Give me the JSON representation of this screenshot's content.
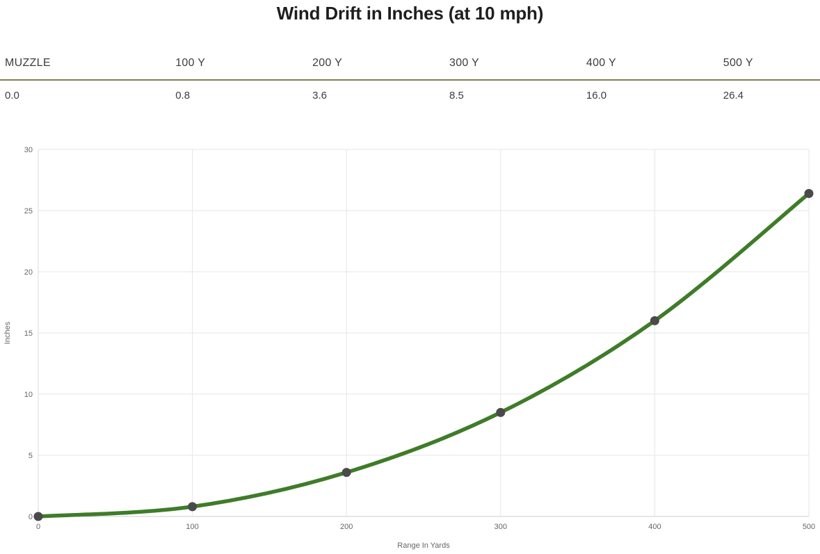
{
  "page": {
    "title": "Wind Drift in Inches (at 10 mph)"
  },
  "table": {
    "headers": [
      "MUZZLE",
      "100 Y",
      "200 Y",
      "300 Y",
      "400 Y",
      "500 Y"
    ],
    "values": [
      "0.0",
      "0.8",
      "3.6",
      "8.5",
      "16.0",
      "26.4"
    ],
    "divider_color": "#857d55"
  },
  "chart_data": {
    "type": "line",
    "title": "Wind Drift in Inches (at 10 mph)",
    "x": [
      0,
      100,
      200,
      300,
      400,
      500
    ],
    "y": [
      0,
      0.8,
      3.6,
      8.5,
      16.0,
      26.4
    ],
    "xlabel": "Range In Yards",
    "ylabel": "Inches",
    "xlim": [
      0,
      500
    ],
    "ylim": [
      0,
      30
    ],
    "xticks": [
      0,
      100,
      200,
      300,
      400,
      500
    ],
    "yticks": [
      0,
      5,
      10,
      15,
      20,
      25,
      30
    ],
    "grid": true,
    "legend": false,
    "colors": {
      "line": "#3f7c29",
      "point": "#4a4a4a",
      "grid": "#e6e6e6",
      "x_axis_line": "#cccccc",
      "y_axis_line": "#dddddd",
      "tick_label": "#666666",
      "axis_title": "#666666"
    }
  }
}
